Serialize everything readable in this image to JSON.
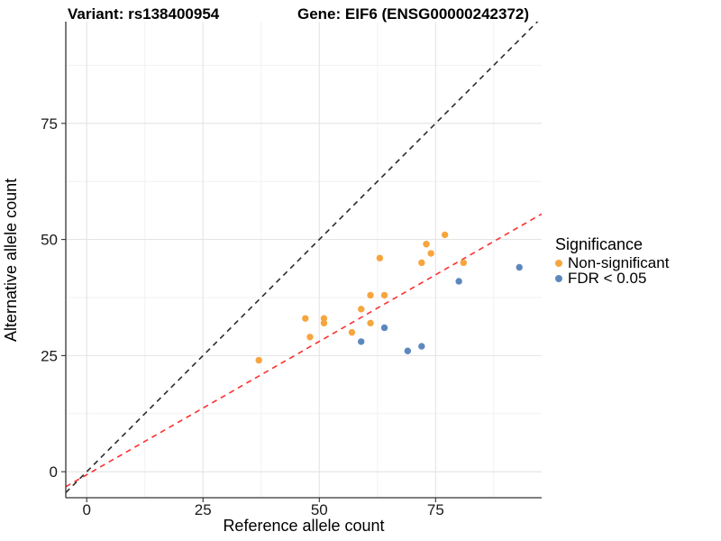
{
  "title": {
    "variant": "Variant: rs138400954",
    "gene": "Gene: EIF6 (ENSG00000242372)"
  },
  "axes": {
    "x": {
      "label": "Reference allele count",
      "ticks": [
        0,
        25,
        50,
        75
      ]
    },
    "y": {
      "label": "Alternative allele count",
      "ticks": [
        0,
        25,
        50,
        75
      ]
    }
  },
  "legend": {
    "title": "Significance",
    "items": [
      {
        "label": "Non-significant",
        "color": "#F7A53E"
      },
      {
        "label": "FDR < 0.05",
        "color": "#5C88BE"
      }
    ]
  },
  "colors": {
    "non_significant": "#F7A53E",
    "fdr_significant": "#5C88BE",
    "identity_line": "#2B2B2B",
    "fit_line": "#FB3030",
    "grid_major": "#E4E4E4",
    "grid_minor": "#F1F1F1",
    "axis_line": "#333333"
  },
  "chart_data": {
    "type": "scatter",
    "title": "Variant: rs138400954 — Gene: EIF6 (ENSG00000242372)",
    "xlabel": "Reference allele count",
    "ylabel": "Alternative allele count",
    "xlim": [
      -4.5,
      97.8
    ],
    "ylim": [
      -5.6,
      96.9
    ],
    "x_ticks": [
      0,
      25,
      50,
      75
    ],
    "y_ticks": [
      0,
      25,
      50,
      75
    ],
    "x_minor_ticks": [
      12.5,
      37.5,
      62.5,
      87.5
    ],
    "y_minor_ticks": [
      12.5,
      37.5,
      62.5,
      87.5
    ],
    "grid": true,
    "legend_position": "right",
    "legend_title": "Significance",
    "series": [
      {
        "name": "Non-significant",
        "color": "#F7A53E",
        "points": [
          [
            37,
            24
          ],
          [
            47,
            33
          ],
          [
            48,
            29
          ],
          [
            51,
            32
          ],
          [
            51,
            33
          ],
          [
            57,
            30
          ],
          [
            59,
            35
          ],
          [
            61,
            32
          ],
          [
            61,
            38
          ],
          [
            63,
            46
          ],
          [
            64,
            38
          ],
          [
            72,
            45
          ],
          [
            73,
            49
          ],
          [
            74,
            47
          ],
          [
            77,
            51
          ],
          [
            81,
            45
          ]
        ]
      },
      {
        "name": "FDR < 0.05",
        "color": "#5C88BE",
        "points": [
          [
            59,
            28
          ],
          [
            64,
            31
          ],
          [
            69,
            26
          ],
          [
            72,
            27
          ],
          [
            80,
            41
          ],
          [
            93,
            44
          ]
        ]
      }
    ],
    "reference_lines": [
      {
        "name": "identity-line",
        "slope": 1,
        "intercept": 0,
        "color": "#2B2B2B",
        "style": "dashed"
      },
      {
        "name": "fit-line",
        "slope": 0.574,
        "intercept": -0.65,
        "color": "#FB3030",
        "style": "dashed"
      }
    ]
  }
}
